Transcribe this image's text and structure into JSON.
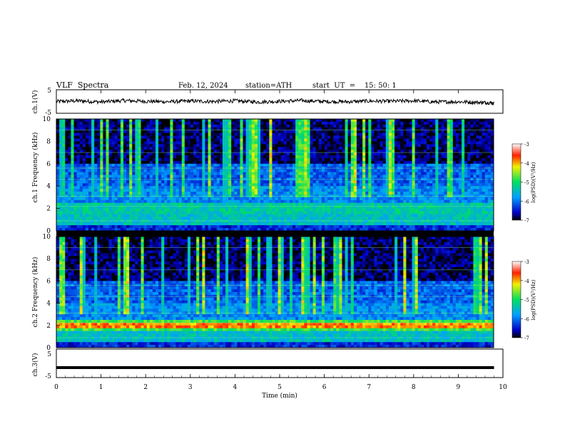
{
  "header": {
    "title": "VLF  Spectra",
    "date": "Feb. 12, 2024",
    "station": "station=ATH",
    "start": "start  UT  =    15: 50: 1"
  },
  "chart_data": [
    {
      "type": "line",
      "panel": "ch1-waveform",
      "ylabel": "ch.1(V)",
      "ylim": [
        -5,
        5
      ],
      "yticks": [
        "5",
        "-5"
      ],
      "x": [
        0,
        0.5,
        1,
        1.5,
        2,
        2.5,
        3,
        3.5,
        4,
        4.5,
        5,
        5.5,
        6,
        6.5,
        7,
        7.5,
        8,
        8.5,
        9,
        9.5,
        9.8
      ],
      "values": [
        0,
        0.3,
        -0.2,
        0.4,
        0.1,
        -0.1,
        0.2,
        0,
        0.3,
        -0.2,
        0.1,
        0.4,
        0,
        -0.1,
        0.2,
        0.1,
        0.3,
        -0.2,
        -0.1,
        -0.4,
        -0.6
      ]
    },
    {
      "type": "heatmap",
      "panel": "ch1-spectrogram",
      "ylabel": "ch.1  Frequency  (kHz)",
      "ylim": [
        0,
        10
      ],
      "yticks": [
        "0",
        "2",
        "4",
        "6",
        "8",
        "10"
      ],
      "colorbar": {
        "label": "log(PSD)(V²/Hz)",
        "range": [
          -7,
          -3
        ],
        "ticks": [
          "-3",
          "-4",
          "-5",
          "-6",
          "-7"
        ]
      }
    },
    {
      "type": "heatmap",
      "panel": "ch2-spectrogram",
      "ylabel": "ch.2  Frequency  (kHz)",
      "ylim": [
        0,
        10
      ],
      "yticks": [
        "0",
        "2",
        "4",
        "6",
        "8",
        "10"
      ],
      "colorbar": {
        "label": "log(PSD)(V²/Hz)",
        "range": [
          -7,
          -3
        ],
        "ticks": [
          "-3",
          "-4",
          "-5",
          "-6",
          "-7"
        ]
      }
    },
    {
      "type": "line",
      "panel": "ch3-waveform",
      "ylabel": "ch.3(V)",
      "ylim": [
        -5,
        5
      ],
      "yticks": [
        "5",
        "-5"
      ],
      "x": [
        0,
        9.8
      ],
      "values": [
        -1.5,
        -1.5
      ]
    }
  ],
  "xaxis": {
    "label": "Time  (min)",
    "range": [
      0,
      10
    ],
    "ticks": [
      "0",
      "1",
      "2",
      "3",
      "4",
      "5",
      "6",
      "7",
      "8",
      "9",
      "10"
    ]
  }
}
